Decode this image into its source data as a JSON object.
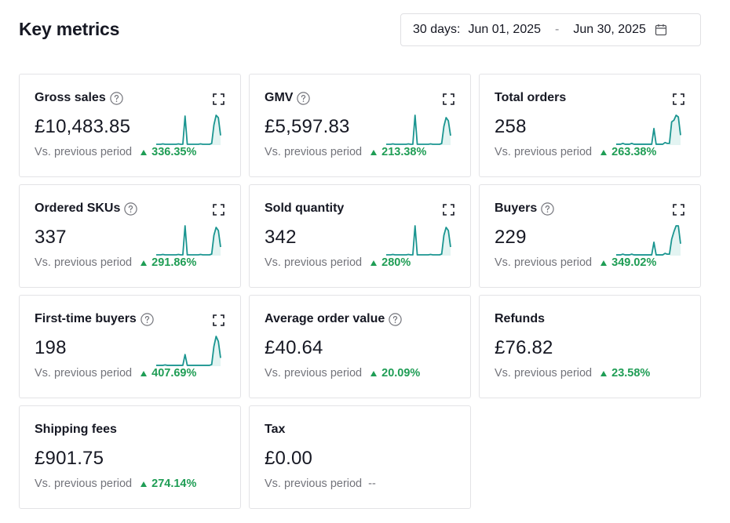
{
  "header": {
    "title": "Key metrics"
  },
  "date_range": {
    "range_label": "30 days:",
    "start": "Jun 01, 2025",
    "separator": "-",
    "end": "Jun 30, 2025",
    "icon": "calendar-icon"
  },
  "colors": {
    "accent": "#1a9590",
    "positive": "#1f9d55",
    "muted": "#73747b"
  },
  "compare_label": "Vs. previous period",
  "cards": [
    {
      "id": "gross-sales",
      "label": "Gross sales",
      "help": true,
      "expand": true,
      "value": "£10,483.85",
      "change": "336.35%",
      "direction": "up",
      "sparkline": [
        1,
        1,
        1,
        1.5,
        1,
        1,
        1,
        1,
        1,
        1,
        1.5,
        1,
        1,
        36,
        1,
        1,
        1,
        1,
        1,
        1,
        1.5,
        1,
        1,
        1,
        1,
        2,
        25,
        37,
        34,
        12
      ]
    },
    {
      "id": "gmv",
      "label": "GMV",
      "help": true,
      "expand": true,
      "value": "£5,597.83",
      "change": "213.38%",
      "direction": "up",
      "sparkline": [
        1,
        1,
        1,
        1.5,
        1,
        1,
        1,
        1,
        1,
        1,
        1.5,
        1,
        1,
        38,
        1,
        1,
        1,
        1,
        1,
        1,
        1.5,
        1,
        1,
        1,
        1,
        2,
        24,
        35,
        31,
        12
      ]
    },
    {
      "id": "total-orders",
      "label": "Total orders",
      "help": false,
      "expand": true,
      "value": "258",
      "change": "263.38%",
      "direction": "up",
      "sparkline": [
        1,
        1,
        1,
        2,
        1,
        1,
        1,
        2,
        1,
        1,
        1,
        1,
        1,
        1,
        1,
        1,
        1,
        20,
        1,
        1,
        1,
        1,
        3,
        2,
        2,
        28,
        30,
        36,
        34,
        12
      ]
    },
    {
      "id": "ordered-skus",
      "label": "Ordered SKUs",
      "help": true,
      "expand": true,
      "value": "337",
      "change": "291.86%",
      "direction": "up",
      "sparkline": [
        1,
        1,
        1,
        1.5,
        1,
        1,
        1,
        1,
        1,
        1,
        1.5,
        1,
        1,
        38,
        1,
        1,
        1,
        1,
        1,
        1,
        1.5,
        1,
        1,
        1,
        1,
        2,
        26,
        36,
        32,
        11
      ]
    },
    {
      "id": "sold-quantity",
      "label": "Sold quantity",
      "help": false,
      "expand": true,
      "value": "342",
      "change": "280%",
      "direction": "up",
      "sparkline": [
        1,
        1,
        1,
        1.5,
        1,
        1,
        1,
        1,
        1,
        1,
        1.5,
        1,
        1,
        38,
        1,
        1,
        1,
        1,
        1,
        1,
        1.5,
        1,
        1,
        1,
        1,
        2,
        26,
        36,
        32,
        11
      ]
    },
    {
      "id": "buyers",
      "label": "Buyers",
      "help": true,
      "expand": true,
      "value": "229",
      "change": "349.02%",
      "direction": "up",
      "sparkline": [
        1,
        1,
        1,
        2,
        1,
        1,
        1,
        2,
        1,
        1,
        1,
        1,
        1,
        1,
        1,
        1,
        1,
        18,
        1,
        1,
        1,
        1,
        3,
        2,
        2,
        22,
        32,
        40,
        40,
        16
      ]
    },
    {
      "id": "first-time-buyers",
      "label": "First-time buyers",
      "help": true,
      "expand": true,
      "value": "198",
      "change": "407.69%",
      "direction": "up",
      "sparkline": [
        1,
        1,
        1,
        1,
        1.5,
        1,
        1,
        1,
        1,
        1,
        1,
        1,
        1,
        14,
        1,
        1,
        1,
        1,
        1,
        1,
        1,
        1,
        1,
        1,
        1,
        2,
        24,
        36,
        30,
        10
      ]
    },
    {
      "id": "average-order-value",
      "label": "Average order value",
      "help": true,
      "expand": false,
      "value": "£40.64",
      "change": "20.09%",
      "direction": "up",
      "sparkline": null
    },
    {
      "id": "refunds",
      "label": "Refunds",
      "help": false,
      "expand": false,
      "value": "£76.82",
      "change": "23.58%",
      "direction": "up",
      "sparkline": null
    },
    {
      "id": "shipping-fees",
      "label": "Shipping fees",
      "help": false,
      "expand": false,
      "value": "£901.75",
      "change": "274.14%",
      "direction": "up",
      "sparkline": null
    },
    {
      "id": "tax",
      "label": "Tax",
      "help": false,
      "expand": false,
      "value": "£0.00",
      "change": "--",
      "direction": "none",
      "sparkline": null
    }
  ]
}
